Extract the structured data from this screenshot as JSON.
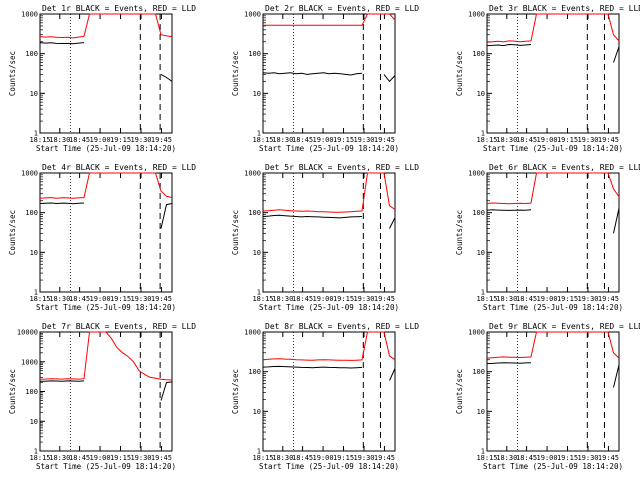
{
  "chart_data": [
    {
      "type": "line",
      "title": "Det 1r BLACK = Events, RED = LLD",
      "xlabel": "Start Time (25-Jul-09 18:14:20)",
      "ylabel": "Counts/sec",
      "yscale": "log",
      "ylim": [
        1,
        1000
      ],
      "xticks": [
        "18:15",
        "18:30",
        "18:45",
        "19:00",
        "19:15",
        "19:30",
        "19:45"
      ],
      "yticks": [
        "1",
        "10",
        "100",
        "1000"
      ],
      "series": [
        {
          "color": "#ff0000",
          "legend": "LLD",
          "values": [
            270,
            262,
            268,
            260,
            255,
            258,
            250,
            262,
            275,
            1000,
            1000,
            1000,
            1000,
            1000,
            1000,
            1000,
            1000,
            1000,
            1000,
            1000,
            1000,
            1000,
            300,
            280,
            270
          ]
        },
        {
          "color": "#000000",
          "legend": "Events",
          "values": [
            190,
            185,
            188,
            182,
            180,
            182,
            178,
            185,
            190,
            null,
            null,
            null,
            null,
            null,
            null,
            null,
            null,
            null,
            null,
            null,
            null,
            null,
            30,
            25,
            20
          ]
        }
      ]
    },
    {
      "type": "line",
      "title": "Det 2r BLACK = Events, RED = LLD",
      "xlabel": "Start Time (25-Jul-09 18:14:20)",
      "ylabel": "Counts/sec",
      "yscale": "log",
      "ylim": [
        1,
        1000
      ],
      "xticks": [
        "18:15",
        "18:30",
        "18:45",
        "19:00",
        "19:15",
        "19:30",
        "19:45"
      ],
      "yticks": [
        "1",
        "10",
        "100",
        "1000"
      ],
      "series": [
        {
          "color": "#ff0000",
          "legend": "LLD",
          "values": [
            520,
            520,
            520,
            520,
            520,
            520,
            520,
            520,
            520,
            520,
            520,
            520,
            520,
            520,
            520,
            520,
            520,
            520,
            520,
            1000,
            1000,
            1000,
            1000,
            1000,
            700
          ]
        },
        {
          "color": "#000000",
          "legend": "Events",
          "values": [
            33,
            32,
            33,
            31,
            32,
            33,
            31,
            32,
            30,
            31,
            32,
            33,
            31,
            32,
            31,
            30,
            29,
            31,
            32,
            null,
            null,
            null,
            30,
            20,
            28
          ]
        }
      ]
    },
    {
      "type": "line",
      "title": "Det 3r BLACK = Events, RED = LLD",
      "xlabel": "Start Time (25-Jul-09 18:14:20)",
      "ylabel": "Counts/sec",
      "yscale": "log",
      "ylim": [
        1,
        1000
      ],
      "xticks": [
        "18:15",
        "18:30",
        "18:45",
        "19:00",
        "19:15",
        "19:30",
        "19:45"
      ],
      "yticks": [
        "1",
        "10",
        "100",
        "1000"
      ],
      "series": [
        {
          "color": "#ff0000",
          "legend": "LLD",
          "values": [
            195,
            200,
            205,
            198,
            210,
            208,
            200,
            205,
            210,
            1000,
            1000,
            1000,
            1000,
            1000,
            1000,
            1000,
            1000,
            1000,
            1000,
            1000,
            1000,
            1000,
            1000,
            300,
            210
          ]
        },
        {
          "color": "#000000",
          "legend": "Events",
          "values": [
            160,
            162,
            165,
            160,
            170,
            168,
            162,
            165,
            170,
            null,
            null,
            null,
            null,
            null,
            null,
            null,
            null,
            null,
            null,
            null,
            null,
            null,
            null,
            60,
            150
          ]
        }
      ]
    },
    {
      "type": "line",
      "title": "Det 4r BLACK = Events, RED = LLD",
      "xlabel": "Start Time (25-Jul-09 18:14:20)",
      "ylabel": "Counts/sec",
      "yscale": "log",
      "ylim": [
        1,
        1000
      ],
      "xticks": [
        "18:15",
        "18:30",
        "18:45",
        "19:00",
        "19:15",
        "19:30",
        "19:45"
      ],
      "yticks": [
        "1",
        "10",
        "100",
        "1000"
      ],
      "series": [
        {
          "color": "#ff0000",
          "legend": "LLD",
          "values": [
            230,
            235,
            240,
            232,
            238,
            235,
            230,
            236,
            240,
            1000,
            1000,
            1000,
            1000,
            1000,
            1000,
            1000,
            1000,
            1000,
            1000,
            1000,
            1000,
            1000,
            350,
            260,
            240
          ]
        },
        {
          "color": "#000000",
          "legend": "Events",
          "values": [
            170,
            172,
            175,
            170,
            174,
            172,
            168,
            172,
            175,
            null,
            null,
            null,
            null,
            null,
            null,
            null,
            null,
            null,
            null,
            null,
            null,
            null,
            40,
            160,
            170
          ]
        }
      ]
    },
    {
      "type": "line",
      "title": "Det 5r BLACK = Events, RED = LLD",
      "xlabel": "Start Time (25-Jul-09 18:14:20)",
      "ylabel": "Counts/sec",
      "yscale": "log",
      "ylim": [
        1,
        1000
      ],
      "xticks": [
        "18:15",
        "18:30",
        "18:45",
        "19:00",
        "19:15",
        "19:30",
        "19:45"
      ],
      "yticks": [
        "1",
        "10",
        "100",
        "1000"
      ],
      "series": [
        {
          "color": "#ff0000",
          "legend": "LLD",
          "values": [
            110,
            112,
            115,
            118,
            115,
            112,
            110,
            108,
            110,
            108,
            106,
            105,
            104,
            103,
            102,
            104,
            106,
            108,
            110,
            1000,
            1000,
            1000,
            1000,
            150,
            120
          ]
        },
        {
          "color": "#000000",
          "legend": "Events",
          "values": [
            80,
            82,
            85,
            86,
            84,
            82,
            80,
            78,
            80,
            79,
            78,
            77,
            76,
            75,
            74,
            76,
            78,
            79,
            80,
            null,
            null,
            null,
            null,
            40,
            75
          ]
        }
      ]
    },
    {
      "type": "line",
      "title": "Det 6r BLACK = Events, RED = LLD",
      "xlabel": "Start Time (25-Jul-09 18:14:20)",
      "ylabel": "Counts/sec",
      "yscale": "log",
      "ylim": [
        1,
        1000
      ],
      "xticks": [
        "18:15",
        "18:30",
        "18:45",
        "19:00",
        "19:15",
        "19:30",
        "19:45"
      ],
      "yticks": [
        "1",
        "10",
        "100",
        "1000"
      ],
      "series": [
        {
          "color": "#ff0000",
          "legend": "LLD",
          "values": [
            170,
            175,
            172,
            170,
            168,
            170,
            172,
            170,
            175,
            1000,
            1000,
            1000,
            1000,
            1000,
            1000,
            1000,
            1000,
            1000,
            1000,
            1000,
            1000,
            1000,
            1000,
            400,
            250
          ]
        },
        {
          "color": "#000000",
          "legend": "Events",
          "values": [
            115,
            118,
            116,
            115,
            114,
            115,
            116,
            115,
            118,
            null,
            null,
            null,
            null,
            null,
            null,
            null,
            null,
            null,
            null,
            null,
            null,
            null,
            null,
            30,
            130
          ]
        }
      ]
    },
    {
      "type": "line",
      "title": "Det 7r BLACK = Events, RED = LLD",
      "xlabel": "Start Time (25-Jul-09 18:14:20)",
      "ylabel": "Counts/sec",
      "yscale": "log",
      "ylim": [
        1,
        10000
      ],
      "xticks": [
        "18:15",
        "18:30",
        "18:45",
        "19:00",
        "19:15",
        "19:30",
        "19:45"
      ],
      "yticks": [
        "1",
        "10",
        "100",
        "1000",
        "10000"
      ],
      "series": [
        {
          "color": "#ff0000",
          "legend": "LLD",
          "values": [
            260,
            262,
            270,
            265,
            262,
            268,
            265,
            262,
            270,
            10000,
            10000,
            10000,
            10000,
            6000,
            3000,
            2000,
            1500,
            1000,
            500,
            380,
            300,
            280,
            260,
            250,
            245
          ]
        },
        {
          "color": "#000000",
          "legend": "Events",
          "values": [
            220,
            222,
            228,
            225,
            222,
            228,
            225,
            222,
            228,
            null,
            null,
            null,
            null,
            null,
            null,
            null,
            null,
            null,
            null,
            null,
            null,
            null,
            50,
            200,
            210
          ]
        }
      ]
    },
    {
      "type": "line",
      "title": "Det 8r BLACK = Events, RED = LLD",
      "xlabel": "Start Time (25-Jul-09 18:14:20)",
      "ylabel": "Counts/sec",
      "yscale": "log",
      "ylim": [
        1,
        1000
      ],
      "xticks": [
        "18:15",
        "18:30",
        "18:45",
        "19:00",
        "19:15",
        "19:30",
        "19:45"
      ],
      "yticks": [
        "1",
        "10",
        "100",
        "1000"
      ],
      "series": [
        {
          "color": "#ff0000",
          "legend": "LLD",
          "values": [
            200,
            205,
            210,
            212,
            208,
            205,
            200,
            198,
            196,
            195,
            198,
            200,
            198,
            196,
            195,
            194,
            192,
            195,
            198,
            1000,
            1000,
            1000,
            1000,
            250,
            200
          ]
        },
        {
          "color": "#000000",
          "legend": "Events",
          "values": [
            130,
            132,
            135,
            136,
            134,
            132,
            130,
            128,
            127,
            126,
            128,
            130,
            128,
            127,
            126,
            125,
            124,
            126,
            128,
            null,
            null,
            null,
            null,
            60,
            120
          ]
        }
      ]
    },
    {
      "type": "line",
      "title": "Det 9r BLACK = Events, RED = LLD",
      "xlabel": "Start Time (25-Jul-09 18:14:20)",
      "ylabel": "Counts/sec",
      "yscale": "log",
      "ylim": [
        1,
        1000
      ],
      "xticks": [
        "18:15",
        "18:30",
        "18:45",
        "19:00",
        "19:15",
        "19:30",
        "19:45"
      ],
      "yticks": [
        "1",
        "10",
        "100",
        "1000"
      ],
      "series": [
        {
          "color": "#ff0000",
          "legend": "LLD",
          "values": [
            220,
            225,
            230,
            235,
            232,
            230,
            228,
            232,
            235,
            1000,
            1000,
            1000,
            1000,
            1000,
            1000,
            1000,
            1000,
            1000,
            1000,
            1000,
            1000,
            1000,
            1000,
            300,
            220
          ]
        },
        {
          "color": "#000000",
          "legend": "Events",
          "values": [
            160,
            162,
            165,
            168,
            166,
            165,
            163,
            166,
            168,
            null,
            null,
            null,
            null,
            null,
            null,
            null,
            null,
            null,
            null,
            null,
            null,
            null,
            null,
            40,
            150
          ]
        }
      ]
    }
  ]
}
